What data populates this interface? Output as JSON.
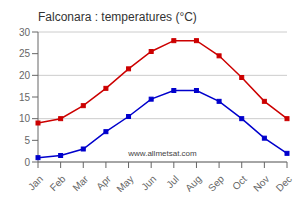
{
  "chart_data": {
    "type": "line",
    "title": "Falconara : temperatures (°C)",
    "categories": [
      "Jan",
      "Feb",
      "Mar",
      "Apr",
      "May",
      "Jun",
      "Jul",
      "Aug",
      "Sep",
      "Oct",
      "Nov",
      "Dec"
    ],
    "series": [
      {
        "color": "#cc0000",
        "values": [
          9,
          10,
          13,
          17,
          21.5,
          25.5,
          28,
          28,
          24.5,
          19.5,
          14,
          10
        ]
      },
      {
        "color": "#0000cc",
        "values": [
          1,
          1.5,
          3,
          7,
          10.5,
          14.5,
          16.5,
          16.5,
          14,
          10,
          5.5,
          2
        ]
      }
    ],
    "ylim": [
      0,
      30
    ],
    "yticks": [
      0,
      5,
      10,
      15,
      20,
      25,
      30
    ],
    "grid": true,
    "marker": "square",
    "line_style": "solid",
    "annotations": [
      "www.allmetsat.com"
    ]
  }
}
